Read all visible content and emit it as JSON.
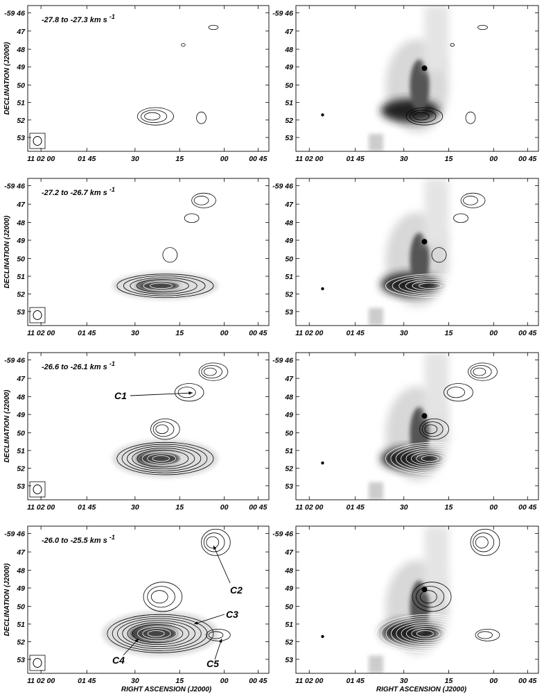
{
  "chart_data": {
    "type": "contour",
    "xlabel": "RIGHT ASCENSION (J2000)",
    "ylabel": "DECLINATION (J2000)",
    "xticks": [
      "11 02 00",
      "01 45",
      "30",
      "15",
      "00",
      "00 45",
      "30"
    ],
    "yticks": [
      "-59 46",
      "47",
      "48",
      "49",
      "50",
      "51",
      "52",
      "53"
    ],
    "velocity_units": "km s",
    "velocity_exponent": "-1",
    "panels": [
      {
        "row": 0,
        "vel_from": "-27.8",
        "vel_to": "-27.3",
        "label": "-27.8  to  -27.3"
      },
      {
        "row": 1,
        "vel_from": "-27.2",
        "vel_to": "-26.7",
        "label": "-27.2  to  -26.7"
      },
      {
        "row": 2,
        "vel_from": "-26.6",
        "vel_to": "-26.1",
        "label": "-26.6  to  -26.1"
      },
      {
        "row": 3,
        "vel_from": "-26.0",
        "vel_to": "-25.5",
        "label": "-26.0  to  -25.5"
      }
    ],
    "clumps": [
      "C1",
      "C2",
      "C3",
      "C4",
      "C5"
    ],
    "left_column": "contours with greyscale",
    "right_column": "contours over optical/IR greyscale image"
  }
}
